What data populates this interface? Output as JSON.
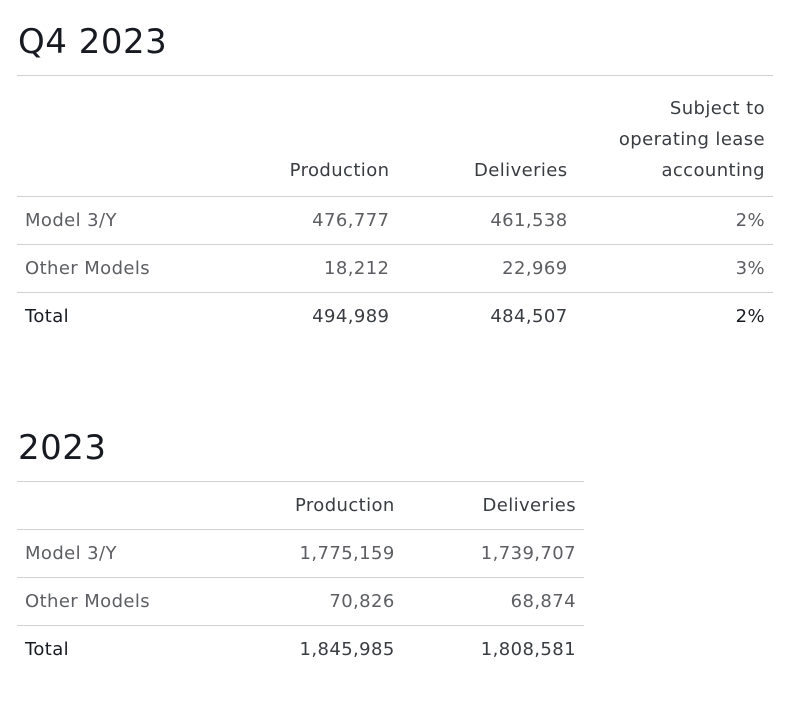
{
  "q4": {
    "title": "Q4 2023",
    "columns": {
      "production": "Production",
      "deliveries": "Deliveries",
      "subject_line1": "Subject to",
      "subject_line2": "operating lease",
      "subject_line3": "accounting"
    },
    "rows": [
      {
        "label": "Model 3/Y",
        "production": "476,777",
        "deliveries": "461,538",
        "lease": "2%"
      },
      {
        "label": "Other Models",
        "production": "18,212",
        "deliveries": "22,969",
        "lease": "3%"
      },
      {
        "label": "Total",
        "production": "494,989",
        "deliveries": "484,507",
        "lease": "2%"
      }
    ]
  },
  "year": {
    "title": "2023",
    "columns": {
      "production": "Production",
      "deliveries": "Deliveries"
    },
    "rows": [
      {
        "label": "Model 3/Y",
        "production": "1,775,159",
        "deliveries": "1,739,707"
      },
      {
        "label": "Other Models",
        "production": "70,826",
        "deliveries": "68,874"
      },
      {
        "label": "Total",
        "production": "1,845,985",
        "deliveries": "1,808,581"
      }
    ]
  }
}
